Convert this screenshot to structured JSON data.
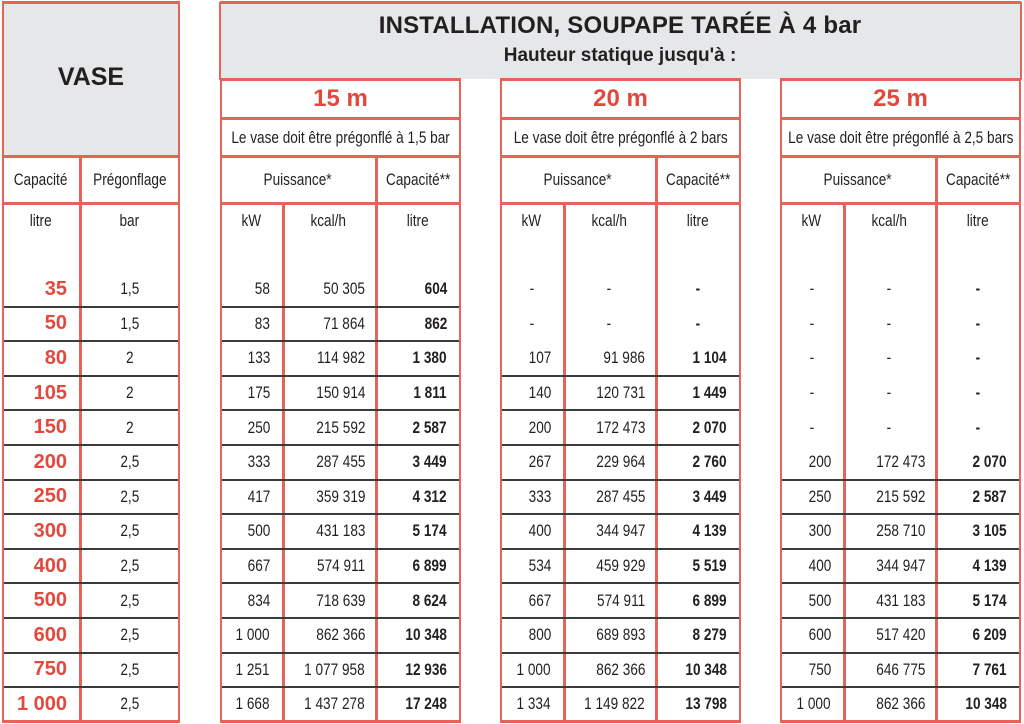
{
  "vase": {
    "title": "VASE",
    "col_capacity": "Capacité",
    "col_pregonflage": "Prégonflage",
    "unit_capacity": "litre",
    "unit_pregonflage": "bar",
    "rows": [
      {
        "capacity": "35",
        "pregonflage": "1,5"
      },
      {
        "capacity": "50",
        "pregonflage": "1,5"
      },
      {
        "capacity": "80",
        "pregonflage": "2"
      },
      {
        "capacity": "105",
        "pregonflage": "2"
      },
      {
        "capacity": "150",
        "pregonflage": "2"
      },
      {
        "capacity": "200",
        "pregonflage": "2,5"
      },
      {
        "capacity": "250",
        "pregonflage": "2,5"
      },
      {
        "capacity": "300",
        "pregonflage": "2,5"
      },
      {
        "capacity": "400",
        "pregonflage": "2,5"
      },
      {
        "capacity": "500",
        "pregonflage": "2,5"
      },
      {
        "capacity": "600",
        "pregonflage": "2,5"
      },
      {
        "capacity": "750",
        "pregonflage": "2,5"
      },
      {
        "capacity": "1 000",
        "pregonflage": "2,5"
      }
    ]
  },
  "installation": {
    "title": "INSTALLATION, SOUPAPE TARÉE À 4 bar",
    "subtitle": "Hauteur statique jusqu'à :",
    "groups": [
      {
        "height": "15 m",
        "note": "Le vase doit être prégonflé à 1,5 bar",
        "col_puissance": "Puissance*",
        "col_capacite": "Capacité**",
        "unit_kw": "kW",
        "unit_kcal": "kcal/h",
        "unit_litre": "litre",
        "rows": [
          {
            "kw": "58",
            "kcal": "50 305",
            "litre": "604"
          },
          {
            "kw": "83",
            "kcal": "71 864",
            "litre": "862"
          },
          {
            "kw": "133",
            "kcal": "114 982",
            "litre": "1 380"
          },
          {
            "kw": "175",
            "kcal": "150 914",
            "litre": "1 811"
          },
          {
            "kw": "250",
            "kcal": "215 592",
            "litre": "2 587"
          },
          {
            "kw": "333",
            "kcal": "287 455",
            "litre": "3 449"
          },
          {
            "kw": "417",
            "kcal": "359 319",
            "litre": "4 312"
          },
          {
            "kw": "500",
            "kcal": "431 183",
            "litre": "5 174"
          },
          {
            "kw": "667",
            "kcal": "574 911",
            "litre": "6 899"
          },
          {
            "kw": "834",
            "kcal": "718 639",
            "litre": "8 624"
          },
          {
            "kw": "1 000",
            "kcal": "862 366",
            "litre": "10 348"
          },
          {
            "kw": "1 251",
            "kcal": "1 077 958",
            "litre": "12 936"
          },
          {
            "kw": "1 668",
            "kcal": "1 437 278",
            "litre": "17 248"
          }
        ]
      },
      {
        "height": "20 m",
        "note": "Le vase doit être prégonflé à 2 bars",
        "col_puissance": "Puissance*",
        "col_capacite": "Capacité**",
        "unit_kw": "kW",
        "unit_kcal": "kcal/h",
        "unit_litre": "litre",
        "rows": [
          {
            "kw": "-",
            "kcal": "-",
            "litre": "-"
          },
          {
            "kw": "-",
            "kcal": "-",
            "litre": "-"
          },
          {
            "kw": "107",
            "kcal": "91 986",
            "litre": "1 104"
          },
          {
            "kw": "140",
            "kcal": "120 731",
            "litre": "1 449"
          },
          {
            "kw": "200",
            "kcal": "172 473",
            "litre": "2 070"
          },
          {
            "kw": "267",
            "kcal": "229 964",
            "litre": "2 760"
          },
          {
            "kw": "333",
            "kcal": "287 455",
            "litre": "3 449"
          },
          {
            "kw": "400",
            "kcal": "344 947",
            "litre": "4 139"
          },
          {
            "kw": "534",
            "kcal": "459 929",
            "litre": "5 519"
          },
          {
            "kw": "667",
            "kcal": "574 911",
            "litre": "6 899"
          },
          {
            "kw": "800",
            "kcal": "689 893",
            "litre": "8 279"
          },
          {
            "kw": "1 000",
            "kcal": "862 366",
            "litre": "10 348"
          },
          {
            "kw": "1 334",
            "kcal": "1 149 822",
            "litre": "13 798"
          }
        ]
      },
      {
        "height": "25 m",
        "note": "Le vase doit être prégonflé à 2,5 bars",
        "col_puissance": "Puissance*",
        "col_capacite": "Capacité**",
        "unit_kw": "kW",
        "unit_kcal": "kcal/h",
        "unit_litre": "litre",
        "rows": [
          {
            "kw": "-",
            "kcal": "-",
            "litre": "-"
          },
          {
            "kw": "-",
            "kcal": "-",
            "litre": "-"
          },
          {
            "kw": "-",
            "kcal": "-",
            "litre": "-"
          },
          {
            "kw": "-",
            "kcal": "-",
            "litre": "-"
          },
          {
            "kw": "-",
            "kcal": "-",
            "litre": "-"
          },
          {
            "kw": "200",
            "kcal": "172 473",
            "litre": "2 070"
          },
          {
            "kw": "250",
            "kcal": "215 592",
            "litre": "2 587"
          },
          {
            "kw": "300",
            "kcal": "258 710",
            "litre": "3 105"
          },
          {
            "kw": "400",
            "kcal": "344 947",
            "litre": "4 139"
          },
          {
            "kw": "500",
            "kcal": "431 183",
            "litre": "5 174"
          },
          {
            "kw": "600",
            "kcal": "517 420",
            "litre": "6 209"
          },
          {
            "kw": "750",
            "kcal": "646 775",
            "litre": "7 761"
          },
          {
            "kw": "1 000",
            "kcal": "862 366",
            "litre": "10 348"
          }
        ]
      }
    ]
  },
  "colors": {
    "accent_red": "#e2483c",
    "border_red": "#e4645a",
    "header_gray": "#e6e7e9",
    "text": "#231f20"
  }
}
